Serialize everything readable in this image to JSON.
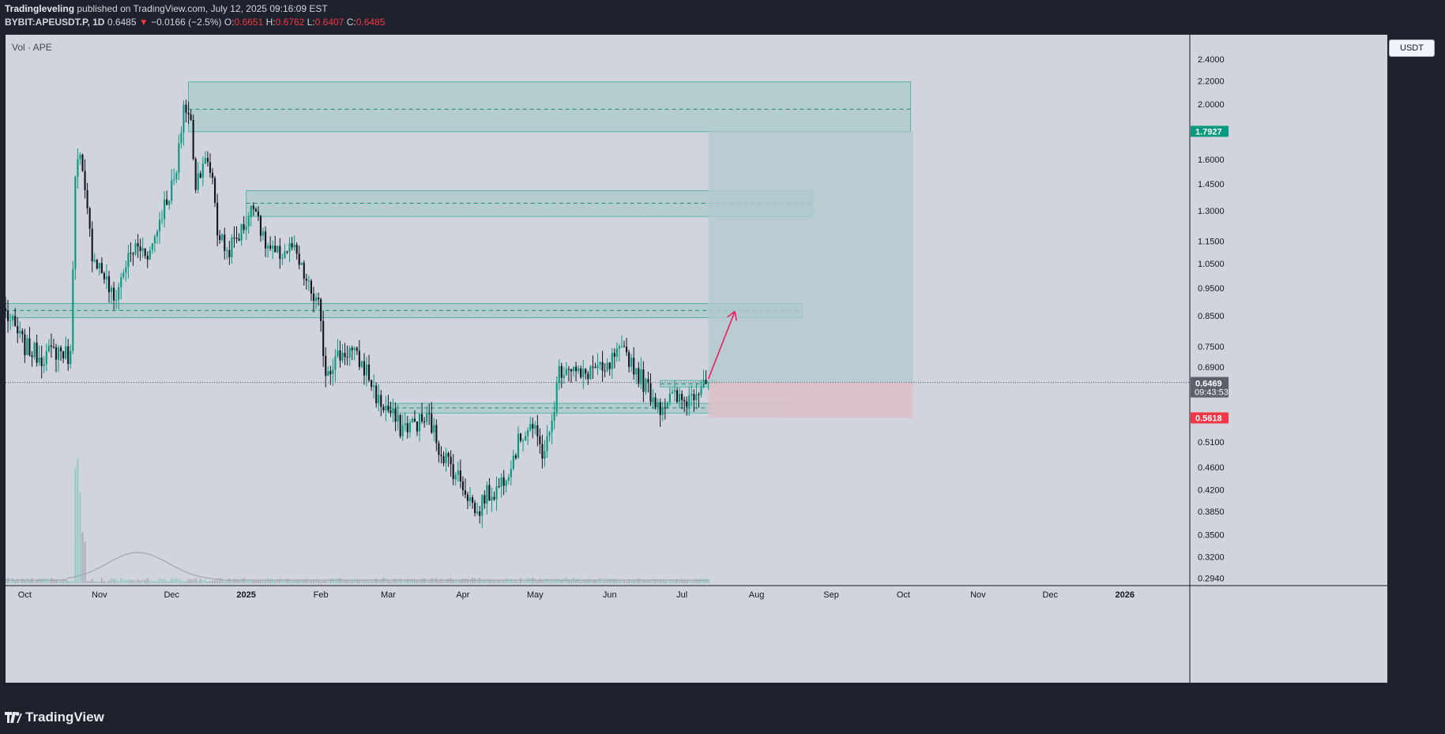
{
  "header": {
    "author": "Tradingleveling",
    "published_text": "published on TradingView.com, July 12, 2025 09:16:09 EST",
    "symbol": "BYBIT:APEUSDT.P, 1D",
    "last": "0.6485",
    "change_arrow": "▼",
    "change": "−0.0166 (−2.5%)",
    "o_label": "O:",
    "o": "0.6651",
    "h_label": "H:",
    "h": "0.6762",
    "l_label": "L:",
    "l": "0.6407",
    "c_label": "C:",
    "c": "0.6485"
  },
  "vol_label": "Vol · APE",
  "currency_button": "USDT",
  "footer": {
    "brand": "TradingView"
  },
  "colors": {
    "up": "#089981",
    "down": "#131722",
    "zone_fill": "#9fc7c3",
    "zone_stroke": "#26a69a",
    "target_fill": "#b1c9cf",
    "stop_fill": "#dcc1cb",
    "arrow": "#e91e63",
    "tp_badge": "#089981",
    "sl_badge": "#f23645"
  },
  "chart_data": {
    "type": "candlestick",
    "scale": "log",
    "ylim": [
      0.285,
      2.65
    ],
    "y_ticks": [
      "2.4000",
      "2.2000",
      "2.0000",
      "1.6000",
      "1.4500",
      "1.3000",
      "1.1500",
      "1.0500",
      "0.9500",
      "0.8500",
      "0.7500",
      "0.6900",
      "0.5100",
      "0.4600",
      "0.4200",
      "0.3850",
      "0.3500",
      "0.3200",
      "0.2940"
    ],
    "x_ticks": [
      "Oct",
      "Nov",
      "Dec",
      "2025",
      "Feb",
      "Mar",
      "Apr",
      "May",
      "Jun",
      "Jul",
      "Aug",
      "Sep",
      "Oct",
      "Nov",
      "Dec",
      "2026"
    ],
    "x_range": [
      "2024-09-23",
      "2026-01-28"
    ],
    "candles_start": "2024-09-23",
    "candles_end": "2025-07-12",
    "candle_anchors": [
      [
        "2024-09-23",
        0.86
      ],
      [
        "2024-10-01",
        0.75
      ],
      [
        "2024-10-08",
        0.72
      ],
      [
        "2024-10-15",
        0.74
      ],
      [
        "2024-10-20",
        0.72
      ],
      [
        "2024-10-22",
        1.55
      ],
      [
        "2024-10-24",
        1.6
      ],
      [
        "2024-10-29",
        1.1
      ],
      [
        "2024-11-03",
        1.0
      ],
      [
        "2024-11-07",
        0.9
      ],
      [
        "2024-11-12",
        1.05
      ],
      [
        "2024-11-16",
        1.12
      ],
      [
        "2024-11-22",
        1.1
      ],
      [
        "2024-11-27",
        1.3
      ],
      [
        "2024-12-03",
        1.5
      ],
      [
        "2024-12-06",
        2.0
      ],
      [
        "2024-12-09",
        1.85
      ],
      [
        "2024-12-11",
        1.45
      ],
      [
        "2024-12-14",
        1.6
      ],
      [
        "2024-12-18",
        1.5
      ],
      [
        "2024-12-20",
        1.2
      ],
      [
        "2024-12-24",
        1.1
      ],
      [
        "2024-12-30",
        1.2
      ],
      [
        "2025-01-05",
        1.35
      ],
      [
        "2025-01-08",
        1.15
      ],
      [
        "2025-01-13",
        1.08
      ],
      [
        "2025-01-20",
        1.12
      ],
      [
        "2025-01-27",
        0.95
      ],
      [
        "2025-01-31",
        0.88
      ],
      [
        "2025-02-03",
        0.68
      ],
      [
        "2025-02-08",
        0.72
      ],
      [
        "2025-02-13",
        0.74
      ],
      [
        "2025-02-20",
        0.68
      ],
      [
        "2025-02-25",
        0.6
      ],
      [
        "2025-03-01",
        0.58
      ],
      [
        "2025-03-06",
        0.54
      ],
      [
        "2025-03-12",
        0.55
      ],
      [
        "2025-03-18",
        0.56
      ],
      [
        "2025-03-22",
        0.5
      ],
      [
        "2025-03-26",
        0.47
      ],
      [
        "2025-04-01",
        0.43
      ],
      [
        "2025-04-07",
        0.38
      ],
      [
        "2025-04-10",
        0.41
      ],
      [
        "2025-04-15",
        0.42
      ],
      [
        "2025-04-20",
        0.46
      ],
      [
        "2025-04-25",
        0.52
      ],
      [
        "2025-04-29",
        0.55
      ],
      [
        "2025-05-04",
        0.49
      ],
      [
        "2025-05-07",
        0.52
      ],
      [
        "2025-05-11",
        0.68
      ],
      [
        "2025-05-15",
        0.7
      ],
      [
        "2025-05-20",
        0.66
      ],
      [
        "2025-05-25",
        0.69
      ],
      [
        "2025-05-30",
        0.67
      ],
      [
        "2025-06-03",
        0.72
      ],
      [
        "2025-06-08",
        0.73
      ],
      [
        "2025-06-13",
        0.67
      ],
      [
        "2025-06-17",
        0.63
      ],
      [
        "2025-06-22",
        0.59
      ],
      [
        "2025-06-27",
        0.61
      ],
      [
        "2025-07-02",
        0.6
      ],
      [
        "2025-07-07",
        0.63
      ],
      [
        "2025-07-10",
        0.665
      ],
      [
        "2025-07-12",
        0.6485
      ]
    ],
    "zones": [
      {
        "from": "2024-12-08",
        "to": "2025-10-04",
        "low": 1.79,
        "high": 2.19,
        "mid": 1.96
      },
      {
        "from": "2025-01-01",
        "to": "2025-08-24",
        "low": 1.27,
        "high": 1.41,
        "mid": 1.34
      },
      {
        "from": "2024-09-23",
        "to": "2025-08-20",
        "low": 0.843,
        "high": 0.893,
        "mid": 0.868
      },
      {
        "from": "2025-03-01",
        "to": "2025-08-15",
        "low": 0.573,
        "high": 0.596,
        "mid": 0.585
      },
      {
        "from": "2025-06-22",
        "to": "2025-07-15",
        "low": 0.637,
        "high": 0.654,
        "mid": 0.645
      }
    ],
    "position": {
      "from": "2025-07-12",
      "to": "2025-10-05",
      "entry": 0.6485,
      "target": 1.7927,
      "stop": 0.5618
    },
    "arrow": {
      "from": [
        "2025-07-12",
        0.658
      ],
      "to": [
        "2025-07-23",
        0.865
      ]
    },
    "current_price_line": 0.6485,
    "price_badges": [
      {
        "value": "1.7927",
        "kind": "target"
      },
      {
        "value": "0.6485",
        "sub": "09:43:53",
        "kind": "last"
      },
      {
        "value": "0.6469",
        "kind": "level"
      },
      {
        "value": "0.5618",
        "kind": "stop"
      }
    ]
  }
}
